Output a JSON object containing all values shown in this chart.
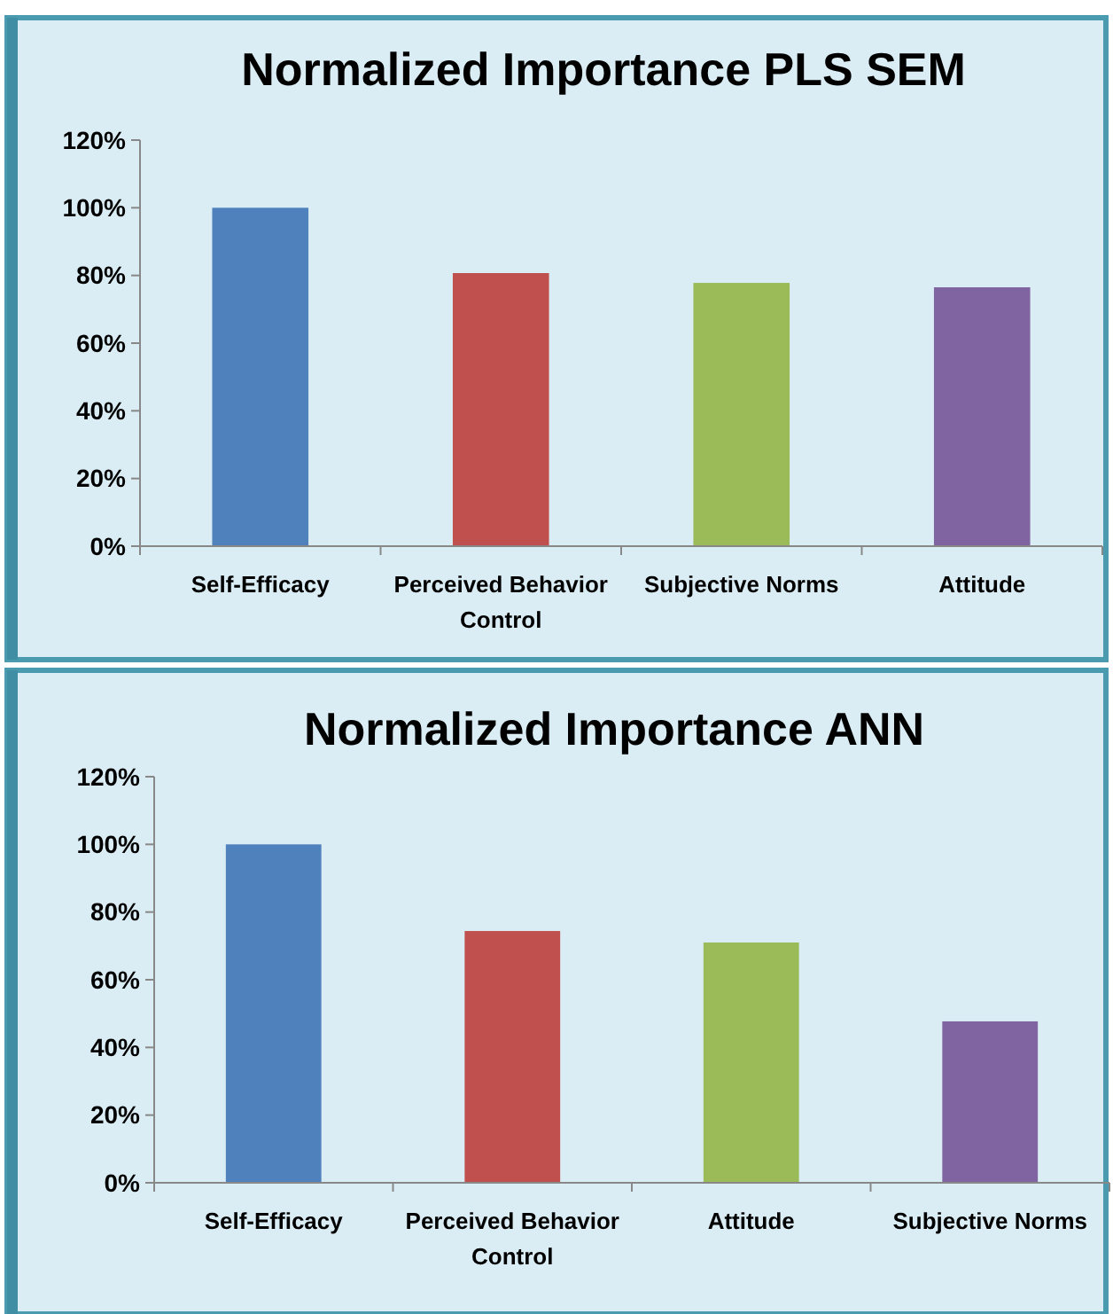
{
  "chart_data": [
    {
      "type": "bar",
      "title": "Normalized Importance PLS SEM",
      "categories": [
        "Self-Efficacy",
        "Perceived Behavior Control",
        "Subjective Norms",
        "Attitude"
      ],
      "values": [
        100,
        80.7,
        77.8,
        76.5
      ],
      "colors": [
        "#4f81bd",
        "#c0504d",
        "#9bbb59",
        "#8064a2"
      ],
      "ylim": [
        0,
        120
      ],
      "yticks": [
        {
          "value": 0,
          "label": "0%"
        },
        {
          "value": 20,
          "label": "20%"
        },
        {
          "value": 40,
          "label": "40%"
        },
        {
          "value": 60,
          "label": "60%"
        },
        {
          "value": 80,
          "label": "80%"
        },
        {
          "value": 100,
          "label": "100%"
        },
        {
          "value": 120,
          "label": "120%"
        }
      ],
      "grid": false
    },
    {
      "type": "bar",
      "title": "Normalized Importance ANN",
      "categories": [
        "Self-Efficacy",
        "Perceived Behavior Control",
        "Attitude",
        "Subjective Norms"
      ],
      "values": [
        100,
        74.4,
        71.0,
        47.7
      ],
      "colors": [
        "#4f81bd",
        "#c0504d",
        "#9bbb59",
        "#8064a2"
      ],
      "ylim": [
        0,
        120
      ],
      "yticks": [
        {
          "value": 0,
          "label": "0%"
        },
        {
          "value": 20,
          "label": "20%"
        },
        {
          "value": 40,
          "label": "40%"
        },
        {
          "value": 60,
          "label": "60%"
        },
        {
          "value": 80,
          "label": "80%"
        },
        {
          "value": 100,
          "label": "100%"
        },
        {
          "value": 120,
          "label": "120%"
        }
      ],
      "grid": false
    }
  ]
}
